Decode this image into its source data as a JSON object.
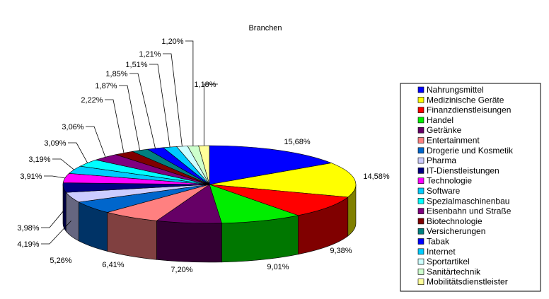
{
  "chart_data": {
    "type": "pie",
    "title": "Branchen",
    "legend_position": "right",
    "categories": [
      "Nahrungsmittel",
      "Medizinische Geräte",
      "Finanzdienstleisungen",
      "Handel",
      "Getränke",
      "Entertainment",
      "Drogerie und Kosmetik",
      "Pharma",
      "IT-Dienstleistungen",
      "Technologie",
      "Software",
      "Spezialmaschinenbau",
      "Eisenbahn und Straße",
      "Biotechnologie",
      "Versicherungen",
      "Tabak",
      "Internet",
      "Sportartikel",
      "Sanitärtechnik",
      "Mobilitätsdienstleister"
    ],
    "values": [
      15.68,
      14.58,
      9.38,
      9.01,
      7.2,
      6.41,
      5.26,
      4.19,
      3.98,
      3.91,
      3.19,
      3.09,
      3.06,
      2.22,
      1.87,
      1.85,
      1.51,
      1.21,
      1.2,
      1.18
    ],
    "data_labels": [
      "15,68%",
      "14,58%",
      "9,38%",
      "9,01%",
      "7,20%",
      "6,41%",
      "5,26%",
      "4,19%",
      "3,98%",
      "3,91%",
      "3,19%",
      "3,09%",
      "3,06%",
      "2,22%",
      "1,87%",
      "1,85%",
      "1,51%",
      "1,21%",
      "1,20%",
      "1,18%"
    ],
    "colors": [
      "#0000ff",
      "#ffff00",
      "#ff0000",
      "#00ee00",
      "#660066",
      "#ff8080",
      "#0066cc",
      "#ccccff",
      "#000080",
      "#ff00ff",
      "#00ccff",
      "#00ffff",
      "#800080",
      "#800000",
      "#008080",
      "#0000ff",
      "#00ccff",
      "#ccffff",
      "#ccffcc",
      "#ffff99"
    ]
  }
}
